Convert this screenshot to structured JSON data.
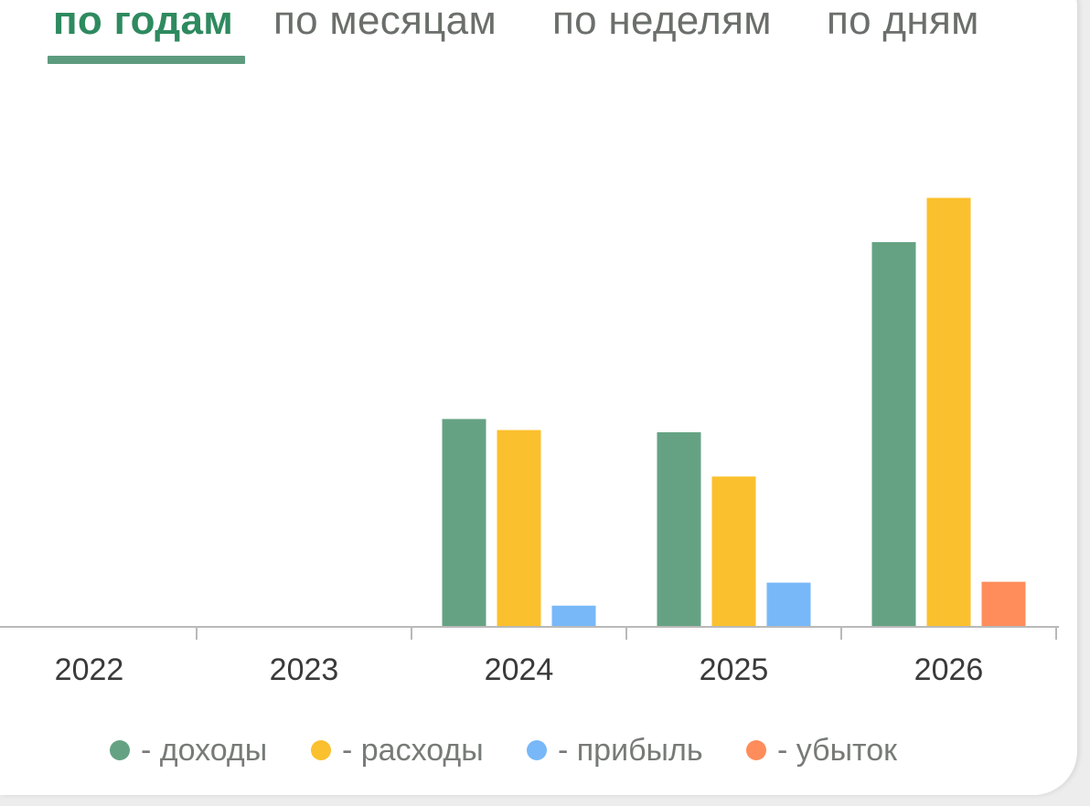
{
  "tabs": [
    {
      "label": "по годам",
      "active": true
    },
    {
      "label": "по месяцам",
      "active": false
    },
    {
      "label": "по неделям",
      "active": false
    },
    {
      "label": "по дням",
      "active": false
    }
  ],
  "colors": {
    "income": "#65a283",
    "expenses": "#fbc02d",
    "profit": "#78b8f8",
    "loss": "#fe8d5b",
    "axis": "#b9b9b9",
    "tab_active": "#2e8a5f",
    "tab_inactive": "#6b6f6b"
  },
  "legend": [
    {
      "key": "income",
      "label": "- доходы"
    },
    {
      "key": "expenses",
      "label": "- расходы"
    },
    {
      "key": "profit",
      "label": "- прибыль"
    },
    {
      "key": "loss",
      "label": "- убыток"
    }
  ],
  "chart_data": {
    "type": "bar",
    "title": "",
    "xlabel": "",
    "ylabel": "",
    "categories": [
      "2022",
      "2023",
      "2024",
      "2025",
      "2026"
    ],
    "series": [
      {
        "key": "income",
        "name": "- доходы",
        "values": [
          0,
          0,
          47,
          44,
          87
        ]
      },
      {
        "key": "expenses",
        "name": "- расходы",
        "values": [
          0,
          0,
          44.5,
          34,
          97
        ]
      },
      {
        "key": "profit",
        "name": "- прибыль",
        "values": [
          0,
          0,
          4.8,
          10,
          0
        ]
      },
      {
        "key": "loss",
        "name": "- убыток",
        "values": [
          0,
          0,
          0,
          0,
          10.2
        ]
      }
    ],
    "ylim": [
      0,
      100
    ],
    "grid": false,
    "y_axis_visible": false,
    "legend_position": "bottom"
  }
}
